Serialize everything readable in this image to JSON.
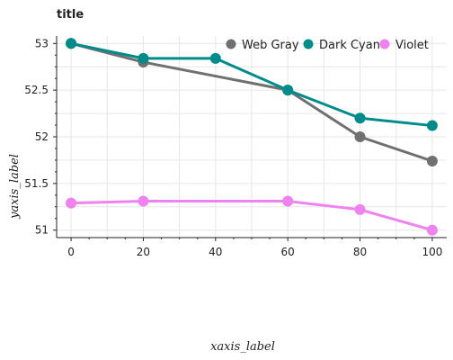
{
  "chart_data": {
    "type": "line",
    "title": "title",
    "xlabel": "xaxis_label",
    "ylabel": "yaxis_label",
    "xlim": [
      -4,
      104
    ],
    "ylim": [
      50.92,
      53.08
    ],
    "grid": true,
    "legend_position": "top-right",
    "x_ticks": [
      0,
      20,
      40,
      60,
      80,
      100
    ],
    "y_ticks": [
      51,
      51.5,
      52,
      52.5,
      53
    ],
    "x_tick_labels": [
      "0",
      "20",
      "40",
      "60",
      "80",
      "100"
    ],
    "y_tick_labels": [
      "51",
      "51.5",
      "52",
      "52.5",
      "53"
    ],
    "series": [
      {
        "name": "Web Gray",
        "color": "#707070",
        "x": [
          0,
          20,
          60,
          80,
          100
        ],
        "y": [
          53.0,
          52.8,
          52.5,
          52.0,
          51.74
        ]
      },
      {
        "name": "Dark Cyan",
        "color": "#008b8b",
        "x": [
          0,
          20,
          40,
          60,
          80,
          100
        ],
        "y": [
          53.0,
          52.84,
          52.84,
          52.5,
          52.2,
          52.12
        ]
      },
      {
        "name": "Violet",
        "color": "#ee82ee",
        "x": [
          0,
          20,
          60,
          80,
          100
        ],
        "y": [
          51.29,
          51.31,
          51.31,
          51.22,
          51.0
        ]
      }
    ]
  }
}
